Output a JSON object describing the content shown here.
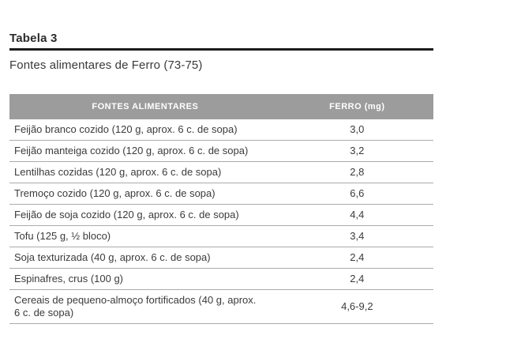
{
  "title": "Tabela 3",
  "subtitle": "Fontes alimentares de Ferro (73-75)",
  "table": {
    "columns": [
      {
        "label": "FONTES ALIMENTARES"
      },
      {
        "label": "FERRO (mg)"
      }
    ],
    "rows": [
      {
        "food": "Feijão branco cozido (120 g, aprox. 6 c. de sopa)",
        "iron": "3,0"
      },
      {
        "food": "Feijão manteiga cozido (120 g, aprox. 6 c. de sopa)",
        "iron": "3,2"
      },
      {
        "food": "Lentilhas cozidas (120 g, aprox. 6 c. de sopa)",
        "iron": "2,8"
      },
      {
        "food": "Tremoço cozido (120 g, aprox. 6 c. de sopa)",
        "iron": "6,6"
      },
      {
        "food": "Feijão de soja cozido (120 g, aprox. 6 c. de sopa)",
        "iron": "4,4"
      },
      {
        "food": "Tofu (125 g, ½ bloco)",
        "iron": "3,4"
      },
      {
        "food": "Soja texturizada (40 g, aprox. 6 c. de sopa)",
        "iron": "2,4"
      },
      {
        "food": "Espinafres, crus (100 g)",
        "iron": "2,4"
      },
      {
        "food": "Cereais de pequeno-almoço fortificados (40 g, aprox.\n6 c. de sopa)",
        "iron": "4,6-9,2"
      }
    ]
  },
  "colors": {
    "header_bg": "#9c9c9c",
    "header_text": "#ffffff",
    "body_text": "#3b3b3b",
    "separator": "#ababab",
    "title_rule": "#1c1c1c",
    "title_text": "#2b2b2b"
  }
}
